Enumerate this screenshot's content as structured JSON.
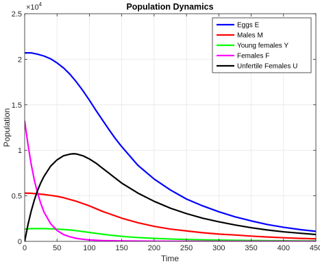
{
  "chart_data": {
    "type": "line",
    "title": "Population Dynamics",
    "xlabel": "Time",
    "ylabel": "Population",
    "xlim": [
      0,
      450
    ],
    "ylim": [
      0,
      25000
    ],
    "x_ticks": [
      0,
      50,
      100,
      150,
      200,
      250,
      300,
      350,
      400,
      450
    ],
    "y_ticks": [
      0,
      5000,
      10000,
      15000,
      20000,
      25000
    ],
    "y_tick_labels": [
      "0",
      "0.5",
      "1",
      "1.5",
      "2",
      "2.5"
    ],
    "y_exponent": "×10",
    "y_exponent_power": "4",
    "grid": true,
    "legend_position": "top-right",
    "series": [
      {
        "name": "Eggs E",
        "color": "#0000ff",
        "x": [
          0,
          10,
          20,
          30,
          40,
          50,
          60,
          70,
          80,
          90,
          100,
          110,
          120,
          130,
          140,
          150,
          175,
          200,
          225,
          250,
          275,
          300,
          325,
          350,
          375,
          400,
          425,
          450
        ],
        "y": [
          20700,
          20700,
          20550,
          20350,
          20050,
          19600,
          19050,
          18350,
          17500,
          16550,
          15500,
          14400,
          13350,
          12300,
          11300,
          10400,
          8350,
          6850,
          5650,
          4650,
          3900,
          3250,
          2700,
          2250,
          1850,
          1550,
          1300,
          1100
        ]
      },
      {
        "name": "Males M",
        "color": "#ff0000",
        "x": [
          0,
          10,
          20,
          30,
          40,
          50,
          60,
          70,
          80,
          90,
          100,
          110,
          120,
          130,
          140,
          150,
          175,
          200,
          225,
          250,
          275,
          300,
          325,
          350,
          375,
          400,
          425,
          450
        ],
        "y": [
          5300,
          5280,
          5220,
          5150,
          5050,
          4950,
          4800,
          4600,
          4400,
          4150,
          3900,
          3600,
          3300,
          3050,
          2800,
          2550,
          2050,
          1650,
          1350,
          1150,
          950,
          800,
          700,
          580,
          480,
          400,
          330,
          280
        ]
      },
      {
        "name": "Young females Y",
        "color": "#00ff00",
        "x": [
          0,
          5,
          10,
          20,
          30,
          40,
          50,
          60,
          70,
          80,
          90,
          100,
          110,
          120,
          130,
          140,
          150,
          175,
          200,
          225,
          250,
          275,
          300,
          325,
          350,
          375,
          400,
          425,
          450
        ],
        "y": [
          1350,
          1380,
          1400,
          1400,
          1400,
          1380,
          1350,
          1300,
          1250,
          1170,
          1080,
          980,
          880,
          790,
          700,
          620,
          550,
          420,
          330,
          260,
          210,
          170,
          140,
          115,
          95,
          80,
          65,
          55,
          45
        ]
      },
      {
        "name": "Females F",
        "color": "#ff00ff",
        "x": [
          0,
          5,
          10,
          15,
          20,
          25,
          30,
          40,
          50,
          60,
          70,
          80,
          90,
          100,
          120,
          150,
          200,
          250,
          300,
          350,
          400,
          450
        ],
        "y": [
          13200,
          10700,
          8500,
          6700,
          5300,
          4150,
          3200,
          1950,
          1200,
          750,
          500,
          330,
          230,
          160,
          90,
          50,
          20,
          10,
          5,
          3,
          2,
          1
        ]
      },
      {
        "name": "Unfertile Females U",
        "color": "#000000",
        "x": [
          0,
          5,
          10,
          15,
          20,
          25,
          30,
          40,
          50,
          60,
          70,
          75,
          80,
          90,
          100,
          110,
          120,
          130,
          140,
          150,
          175,
          200,
          225,
          250,
          275,
          300,
          325,
          350,
          375,
          400,
          425,
          450
        ],
        "y": [
          0,
          1800,
          3300,
          4550,
          5600,
          6450,
          7150,
          8250,
          8950,
          9400,
          9580,
          9620,
          9600,
          9400,
          9050,
          8600,
          8050,
          7500,
          6950,
          6400,
          5300,
          4400,
          3650,
          3050,
          2550,
          2150,
          1800,
          1500,
          1250,
          1050,
          900,
          750
        ]
      }
    ]
  }
}
